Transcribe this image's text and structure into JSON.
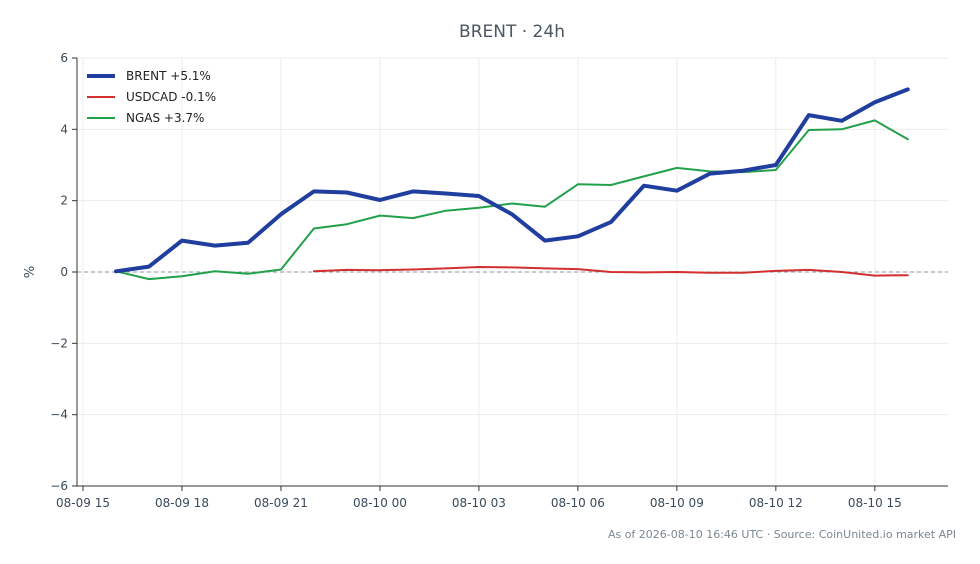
{
  "chart_data": {
    "type": "line",
    "title": "BRENT · 24h",
    "ylabel": "%",
    "xlabel": "",
    "ylim": [
      -6,
      6
    ],
    "yticks": [
      6,
      4,
      2,
      0,
      -2,
      -4,
      -6
    ],
    "ytick_labels": [
      "6",
      "4",
      "2",
      "0",
      "−2",
      "−4",
      "−6"
    ],
    "xlim": [
      0,
      26.4
    ],
    "xticks": [
      0,
      3,
      6,
      9,
      12,
      15,
      18,
      21,
      24
    ],
    "xtick_labels": [
      "08-09 15",
      "08-09 18",
      "08-09 21",
      "08-10 00",
      "08-10 03",
      "08-10 06",
      "08-10 09",
      "08-10 12",
      "08-10 15"
    ],
    "grid": true,
    "zero_line": true,
    "legend_position": "top-left",
    "series": [
      {
        "name": "BRENT +5.1%",
        "color": "#1f3e9e",
        "width": 4,
        "x": [
          1,
          2,
          3,
          4,
          5,
          6,
          7,
          8,
          9,
          10,
          11,
          12,
          13,
          14,
          15,
          16,
          17,
          18,
          19,
          20,
          21,
          22,
          23,
          24,
          25
        ],
        "y": [
          0.02,
          0.15,
          0.88,
          0.74,
          0.82,
          1.62,
          2.26,
          2.23,
          2.02,
          2.26,
          2.2,
          2.13,
          1.62,
          0.88,
          1.0,
          1.4,
          2.42,
          2.28,
          2.76,
          2.84,
          3.0,
          4.4,
          4.24,
          4.76,
          5.12
        ]
      },
      {
        "name": "USDCAD -0.1%",
        "color": "#d32f2f",
        "width": 2,
        "x": [
          7,
          8,
          9,
          10,
          11,
          12,
          13,
          14,
          15,
          16,
          17,
          18,
          19,
          20,
          21,
          22,
          23,
          24,
          25
        ],
        "y": [
          0.02,
          0.06,
          0.05,
          0.07,
          0.1,
          0.14,
          0.13,
          0.1,
          0.08,
          0.0,
          -0.01,
          0.0,
          -0.02,
          -0.02,
          0.03,
          0.06,
          0.0,
          -0.1,
          -0.09
        ]
      },
      {
        "name": "NGAS +3.7%",
        "color": "#22a04a",
        "width": 2,
        "x": [
          1,
          2,
          3,
          4,
          5,
          6,
          7,
          8,
          9,
          10,
          11,
          12,
          13,
          14,
          15,
          16,
          17,
          18,
          19,
          20,
          21,
          22,
          23,
          24,
          25
        ],
        "y": [
          0.02,
          -0.2,
          -0.12,
          0.02,
          -0.05,
          0.07,
          1.22,
          1.34,
          1.58,
          1.51,
          1.72,
          1.8,
          1.92,
          1.83,
          2.46,
          2.44,
          2.68,
          2.92,
          2.82,
          2.8,
          2.86,
          3.98,
          4.0,
          4.25,
          3.72
        ]
      }
    ]
  },
  "footer": {
    "source_text": "As of 2026-08-10 16:46 UTC · Source: CoinUnited.io market API"
  }
}
